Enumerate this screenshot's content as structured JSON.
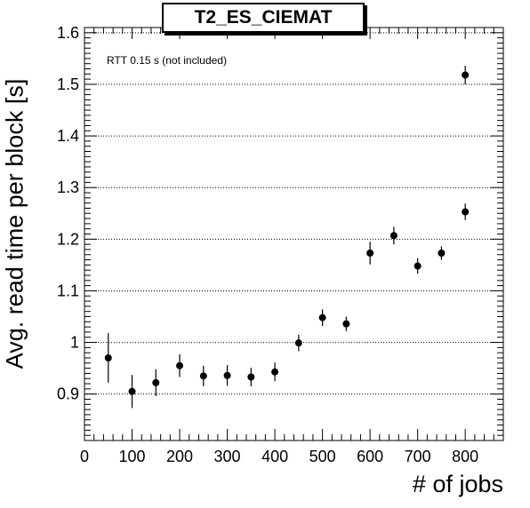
{
  "chart_data": {
    "type": "scatter",
    "title": "T2_ES_CIEMAT",
    "annotation": "RTT 0.15 s (not included)",
    "xlabel": "# of jobs",
    "ylabel": "Avg. read time per block [s]",
    "xlim": [
      0,
      880
    ],
    "ylim": [
      0.81,
      1.61
    ],
    "xticks": [
      0,
      100,
      200,
      300,
      400,
      500,
      600,
      700,
      800
    ],
    "yticks": [
      0.9,
      1,
      1.1,
      1.2,
      1.3,
      1.4,
      1.5,
      1.6
    ],
    "ytick_labels": [
      "0.9",
      "1",
      "1.1",
      "1.2",
      "1.3",
      "1.4",
      "1.5",
      "1.6"
    ],
    "grid": "horizontal dotted",
    "colors": {
      "marker": "#000000",
      "grid": "#000000"
    },
    "series": [
      {
        "x": [
          50,
          100,
          150,
          200,
          250,
          300,
          350,
          400,
          450,
          500,
          550,
          600,
          650,
          700,
          750,
          800,
          800
        ],
        "y": [
          0.97,
          0.905,
          0.922,
          0.955,
          0.935,
          0.936,
          0.933,
          0.943,
          0.999,
          1.048,
          1.036,
          1.173,
          1.207,
          1.148,
          1.173,
          1.253,
          1.518
        ],
        "yerr": [
          0.048,
          0.032,
          0.026,
          0.022,
          0.02,
          0.02,
          0.018,
          0.018,
          0.016,
          0.016,
          0.014,
          0.022,
          0.017,
          0.015,
          0.013,
          0.016,
          0.018
        ]
      }
    ]
  }
}
